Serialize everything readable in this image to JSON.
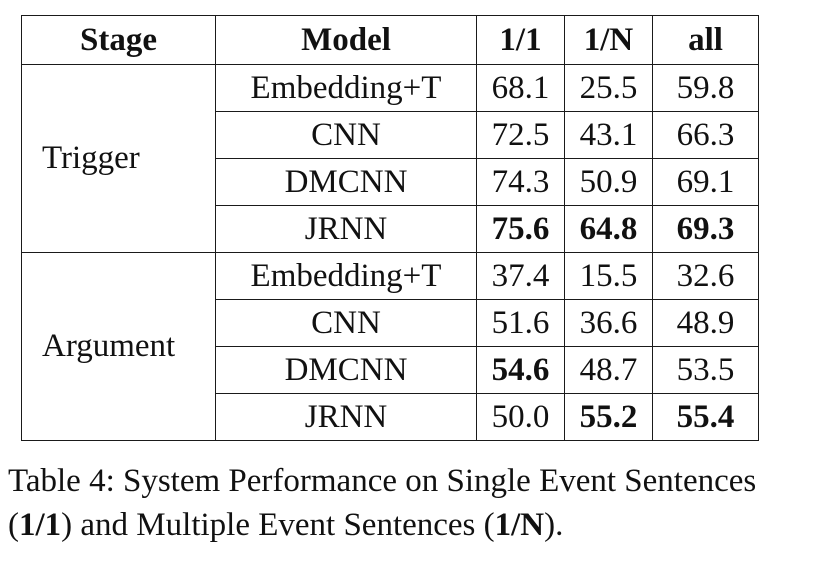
{
  "table": {
    "headers": [
      "Stage",
      "Model",
      "1/1",
      "1/N",
      "all"
    ],
    "groups": [
      {
        "stage": "Trigger",
        "rows": [
          {
            "model": "Embedding+T",
            "v11": "68.1",
            "v1n": "25.5",
            "all": "59.8"
          },
          {
            "model": "CNN",
            "v11": "72.5",
            "v1n": "43.1",
            "all": "66.3"
          },
          {
            "model": "DMCNN",
            "v11": "74.3",
            "v1n": "50.9",
            "all": "69.1"
          },
          {
            "model": "JRNN",
            "v11": "75.6",
            "v1n": "64.8",
            "all": "69.3"
          }
        ]
      },
      {
        "stage": "Argument",
        "rows": [
          {
            "model": "Embedding+T",
            "v11": "37.4",
            "v1n": "15.5",
            "all": "32.6"
          },
          {
            "model": "CNN",
            "v11": "51.6",
            "v1n": "36.6",
            "all": "48.9"
          },
          {
            "model": "DMCNN",
            "v11": "54.6",
            "v1n": "48.7",
            "all": "53.5"
          },
          {
            "model": "JRNN",
            "v11": "50.0",
            "v1n": "55.2",
            "all": "55.4"
          }
        ]
      }
    ]
  },
  "caption": {
    "line1": "Table 4: System Performance on Single Event Sentences",
    "open1": "(",
    "bold1": "1/1",
    "mid": ") and Multiple Event Sentences (",
    "bold2": "1/N",
    "close": ")."
  }
}
